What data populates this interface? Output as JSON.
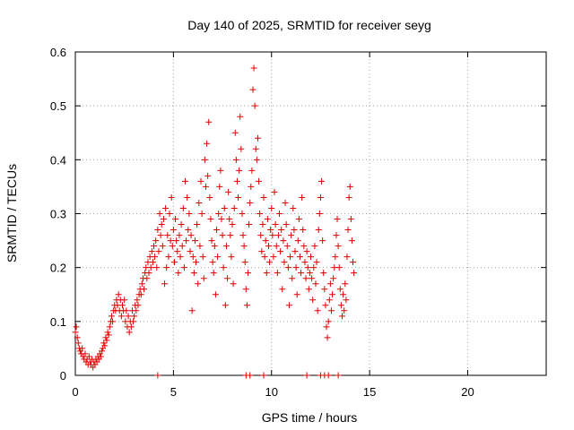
{
  "chart_data": {
    "type": "scatter",
    "title": "Day 140 of 2025, SRMTID for receiver seyg",
    "xlabel": "GPS time / hours",
    "ylabel": "SRMTID / TECUs",
    "xlim": [
      0,
      24
    ],
    "ylim": [
      0,
      0.6
    ],
    "xticks": [
      0,
      5,
      10,
      15,
      20
    ],
    "yticks": [
      0,
      0.1,
      0.2,
      0.3,
      0.4,
      0.5,
      0.6
    ],
    "ytick_labels": [
      "0",
      "0.1",
      "0.2",
      "0.3",
      "0.4",
      "0.5",
      "0.6"
    ],
    "grid": true,
    "marker": "plus",
    "series": [
      {
        "name": "SRMTID",
        "color": "#e00000",
        "points": [
          [
            0.0,
            0.08
          ],
          [
            0.05,
            0.09
          ],
          [
            0.1,
            0.07
          ],
          [
            0.15,
            0.06
          ],
          [
            0.2,
            0.05
          ],
          [
            0.25,
            0.045
          ],
          [
            0.3,
            0.04
          ],
          [
            0.35,
            0.05
          ],
          [
            0.4,
            0.035
          ],
          [
            0.45,
            0.03
          ],
          [
            0.5,
            0.04
          ],
          [
            0.55,
            0.025
          ],
          [
            0.6,
            0.03
          ],
          [
            0.65,
            0.02
          ],
          [
            0.7,
            0.035
          ],
          [
            0.75,
            0.025
          ],
          [
            0.8,
            0.02
          ],
          [
            0.85,
            0.03
          ],
          [
            0.9,
            0.015
          ],
          [
            0.95,
            0.025
          ],
          [
            1.0,
            0.02
          ],
          [
            1.05,
            0.03
          ],
          [
            1.1,
            0.025
          ],
          [
            1.15,
            0.035
          ],
          [
            1.2,
            0.03
          ],
          [
            1.25,
            0.04
          ],
          [
            1.3,
            0.035
          ],
          [
            1.35,
            0.045
          ],
          [
            1.4,
            0.05
          ],
          [
            1.45,
            0.06
          ],
          [
            1.5,
            0.055
          ],
          [
            1.55,
            0.07
          ],
          [
            1.6,
            0.065
          ],
          [
            1.65,
            0.08
          ],
          [
            1.7,
            0.075
          ],
          [
            1.75,
            0.09
          ],
          [
            1.8,
            0.1
          ],
          [
            1.85,
            0.11
          ],
          [
            1.9,
            0.1
          ],
          [
            1.95,
            0.12
          ],
          [
            2.0,
            0.13
          ],
          [
            2.05,
            0.12
          ],
          [
            2.1,
            0.14
          ],
          [
            2.15,
            0.13
          ],
          [
            2.2,
            0.15
          ],
          [
            2.25,
            0.12
          ],
          [
            2.3,
            0.14
          ],
          [
            2.35,
            0.11
          ],
          [
            2.4,
            0.13
          ],
          [
            2.45,
            0.12
          ],
          [
            2.5,
            0.14
          ],
          [
            2.55,
            0.1
          ],
          [
            2.6,
            0.12
          ],
          [
            2.65,
            0.09
          ],
          [
            2.7,
            0.11
          ],
          [
            2.75,
            0.08
          ],
          [
            2.8,
            0.1
          ],
          [
            2.85,
            0.09
          ],
          [
            2.9,
            0.12
          ],
          [
            2.95,
            0.1
          ],
          [
            3.0,
            0.11
          ],
          [
            3.05,
            0.13
          ],
          [
            3.1,
            0.12
          ],
          [
            3.15,
            0.14
          ],
          [
            3.2,
            0.13
          ],
          [
            3.25,
            0.15
          ],
          [
            3.3,
            0.16
          ],
          [
            3.35,
            0.15
          ],
          [
            3.4,
            0.17
          ],
          [
            3.45,
            0.18
          ],
          [
            3.5,
            0.16
          ],
          [
            3.55,
            0.19
          ],
          [
            3.6,
            0.2
          ],
          [
            3.65,
            0.18
          ],
          [
            3.7,
            0.21
          ],
          [
            3.75,
            0.19
          ],
          [
            3.8,
            0.22
          ],
          [
            3.85,
            0.2
          ],
          [
            3.9,
            0.23
          ],
          [
            3.95,
            0.21
          ],
          [
            4.0,
            0.24
          ],
          [
            4.05,
            0.22
          ],
          [
            4.1,
            0.25
          ],
          [
            4.15,
            0.2
          ],
          [
            4.2,
            0.27
          ],
          [
            4.25,
            0.23
          ],
          [
            4.3,
            0.3
          ],
          [
            4.35,
            0.26
          ],
          [
            4.4,
            0.28
          ],
          [
            4.45,
            0.24
          ],
          [
            4.5,
            0.29
          ],
          [
            4.55,
            0.17
          ],
          [
            4.6,
            0.31
          ],
          [
            4.65,
            0.2
          ],
          [
            4.7,
            0.26
          ],
          [
            4.75,
            0.22
          ],
          [
            4.8,
            0.3
          ],
          [
            4.85,
            0.25
          ],
          [
            4.9,
            0.33
          ],
          [
            4.95,
            0.24
          ],
          [
            5.0,
            0.27
          ],
          [
            5.05,
            0.21
          ],
          [
            5.1,
            0.29
          ],
          [
            5.15,
            0.25
          ],
          [
            5.2,
            0.23
          ],
          [
            5.25,
            0.19
          ],
          [
            5.3,
            0.26
          ],
          [
            5.35,
            0.22
          ],
          [
            5.4,
            0.28
          ],
          [
            5.45,
            0.24
          ],
          [
            5.5,
            0.31
          ],
          [
            5.55,
            0.2
          ],
          [
            5.6,
            0.36
          ],
          [
            5.65,
            0.25
          ],
          [
            5.7,
            0.33
          ],
          [
            5.75,
            0.27
          ],
          [
            5.8,
            0.3
          ],
          [
            5.85,
            0.23
          ],
          [
            5.9,
            0.26
          ],
          [
            5.95,
            0.12
          ],
          [
            6.0,
            0.22
          ],
          [
            6.05,
            0.19
          ],
          [
            6.1,
            0.25
          ],
          [
            6.15,
            0.21
          ],
          [
            6.2,
            0.28
          ],
          [
            6.25,
            0.17
          ],
          [
            6.3,
            0.32
          ],
          [
            6.35,
            0.24
          ],
          [
            6.4,
            0.36
          ],
          [
            6.45,
            0.3
          ],
          [
            6.5,
            0.22
          ],
          [
            6.55,
            0.18
          ],
          [
            6.6,
            0.4
          ],
          [
            6.65,
            0.35
          ],
          [
            6.7,
            0.43
          ],
          [
            6.75,
            0.37
          ],
          [
            6.8,
            0.47
          ],
          [
            6.85,
            0.33
          ],
          [
            6.9,
            0.29
          ],
          [
            6.95,
            0.25
          ],
          [
            7.0,
            0.21
          ],
          [
            7.05,
            0.19
          ],
          [
            7.1,
            0.24
          ],
          [
            7.15,
            0.15
          ],
          [
            7.2,
            0.27
          ],
          [
            7.25,
            0.22
          ],
          [
            7.3,
            0.3
          ],
          [
            7.35,
            0.35
          ],
          [
            7.4,
            0.38
          ],
          [
            7.45,
            0.29
          ],
          [
            7.5,
            0.26
          ],
          [
            7.55,
            0.2
          ],
          [
            7.6,
            0.31
          ],
          [
            7.65,
            0.13
          ],
          [
            7.7,
            0.24
          ],
          [
            7.75,
            0.18
          ],
          [
            7.8,
            0.34
          ],
          [
            7.85,
            0.29
          ],
          [
            7.9,
            0.26
          ],
          [
            7.95,
            0.22
          ],
          [
            8.0,
            0.28
          ],
          [
            8.05,
            0.17
          ],
          [
            8.1,
            0.31
          ],
          [
            8.15,
            0.45
          ],
          [
            8.2,
            0.4
          ],
          [
            8.25,
            0.36
          ],
          [
            8.3,
            0.33
          ],
          [
            8.35,
            0.38
          ],
          [
            8.4,
            0.48
          ],
          [
            8.45,
            0.42
          ],
          [
            8.5,
            0.3
          ],
          [
            8.55,
            0.26
          ],
          [
            8.6,
            0.24
          ],
          [
            8.65,
            0.21
          ],
          [
            8.7,
            0.16
          ],
          [
            8.75,
            0.13
          ],
          [
            8.8,
            0.19
          ],
          [
            8.85,
            0.28
          ],
          [
            8.9,
            0.32
          ],
          [
            8.95,
            0.35
          ],
          [
            9.0,
            0.38
          ],
          [
            9.05,
            0.53
          ],
          [
            9.1,
            0.57
          ],
          [
            9.15,
            0.5
          ],
          [
            9.2,
            0.42
          ],
          [
            9.25,
            0.4
          ],
          [
            9.3,
            0.44
          ],
          [
            9.35,
            0.36
          ],
          [
            9.4,
            0.3
          ],
          [
            9.45,
            0.26
          ],
          [
            9.5,
            0.23
          ],
          [
            9.55,
            0.28
          ],
          [
            9.6,
            0.33
          ],
          [
            9.65,
            0.22
          ],
          [
            9.7,
            0.25
          ],
          [
            9.75,
            0.19
          ],
          [
            9.8,
            0.29
          ],
          [
            9.85,
            0.24
          ],
          [
            9.9,
            0.21
          ],
          [
            9.95,
            0.27
          ],
          [
            10.0,
            0.31
          ],
          [
            10.05,
            0.26
          ],
          [
            10.1,
            0.22
          ],
          [
            10.15,
            0.34
          ],
          [
            10.2,
            0.28
          ],
          [
            10.25,
            0.24
          ],
          [
            10.3,
            0.19
          ],
          [
            10.35,
            0.26
          ],
          [
            10.4,
            0.3
          ],
          [
            10.45,
            0.23
          ],
          [
            10.5,
            0.27
          ],
          [
            10.55,
            0.16
          ],
          [
            10.6,
            0.25
          ],
          [
            10.65,
            0.21
          ],
          [
            10.7,
            0.32
          ],
          [
            10.75,
            0.28
          ],
          [
            10.8,
            0.24
          ],
          [
            10.85,
            0.2
          ],
          [
            10.9,
            0.13
          ],
          [
            10.95,
            0.22
          ],
          [
            11.0,
            0.26
          ],
          [
            11.05,
            0.18
          ],
          [
            11.1,
            0.31
          ],
          [
            11.15,
            0.27
          ],
          [
            11.2,
            0.23
          ],
          [
            11.25,
            0.2
          ],
          [
            11.3,
            0.15
          ],
          [
            11.35,
            0.25
          ],
          [
            11.4,
            0.29
          ],
          [
            11.45,
            0.22
          ],
          [
            11.5,
            0.19
          ],
          [
            11.55,
            0.33
          ],
          [
            11.6,
            0.27
          ],
          [
            11.65,
            0.24
          ],
          [
            11.7,
            0.21
          ],
          [
            11.75,
            0.18
          ],
          [
            11.8,
            0.23
          ],
          [
            11.85,
            0.2
          ],
          [
            11.9,
            0.16
          ],
          [
            11.95,
            0.19
          ],
          [
            12.0,
            0.22
          ],
          [
            12.05,
            0.18
          ],
          [
            12.1,
            0.14
          ],
          [
            12.15,
            0.2
          ],
          [
            12.2,
            0.24
          ],
          [
            12.25,
            0.17
          ],
          [
            12.3,
            0.21
          ],
          [
            12.35,
            0.12
          ],
          [
            12.4,
            0.27
          ],
          [
            12.45,
            0.3
          ],
          [
            12.5,
            0.33
          ],
          [
            12.55,
            0.36
          ],
          [
            12.6,
            0.25
          ],
          [
            12.65,
            0.19
          ],
          [
            12.7,
            0.16
          ],
          [
            12.75,
            0.13
          ],
          [
            12.8,
            0.09
          ],
          [
            12.85,
            0.07
          ],
          [
            12.9,
            0.1
          ],
          [
            12.95,
            0.14
          ],
          [
            13.0,
            0.17
          ],
          [
            13.05,
            0.12
          ],
          [
            13.1,
            0.15
          ],
          [
            13.15,
            0.18
          ],
          [
            13.2,
            0.2
          ],
          [
            13.25,
            0.22
          ],
          [
            13.3,
            0.26
          ],
          [
            13.35,
            0.29
          ],
          [
            13.4,
            0.24
          ],
          [
            13.45,
            0.2
          ],
          [
            13.5,
            0.16
          ],
          [
            13.55,
            0.13
          ],
          [
            13.6,
            0.11
          ],
          [
            13.65,
            0.15
          ],
          [
            13.7,
            0.12
          ],
          [
            13.75,
            0.17
          ],
          [
            13.8,
            0.14
          ],
          [
            13.85,
            0.22
          ],
          [
            13.9,
            0.27
          ],
          [
            13.95,
            0.33
          ],
          [
            14.0,
            0.35
          ],
          [
            14.05,
            0.29
          ],
          [
            14.1,
            0.25
          ],
          [
            14.15,
            0.21
          ],
          [
            14.2,
            0.19
          ],
          [
            4.2,
            0.0
          ],
          [
            8.7,
            0.0
          ],
          [
            8.9,
            0.0
          ],
          [
            9.6,
            0.0
          ],
          [
            11.8,
            0.0
          ],
          [
            12.5,
            0.0
          ],
          [
            12.7,
            0.0
          ],
          [
            12.9,
            0.0
          ],
          [
            13.4,
            0.0
          ]
        ]
      }
    ]
  }
}
